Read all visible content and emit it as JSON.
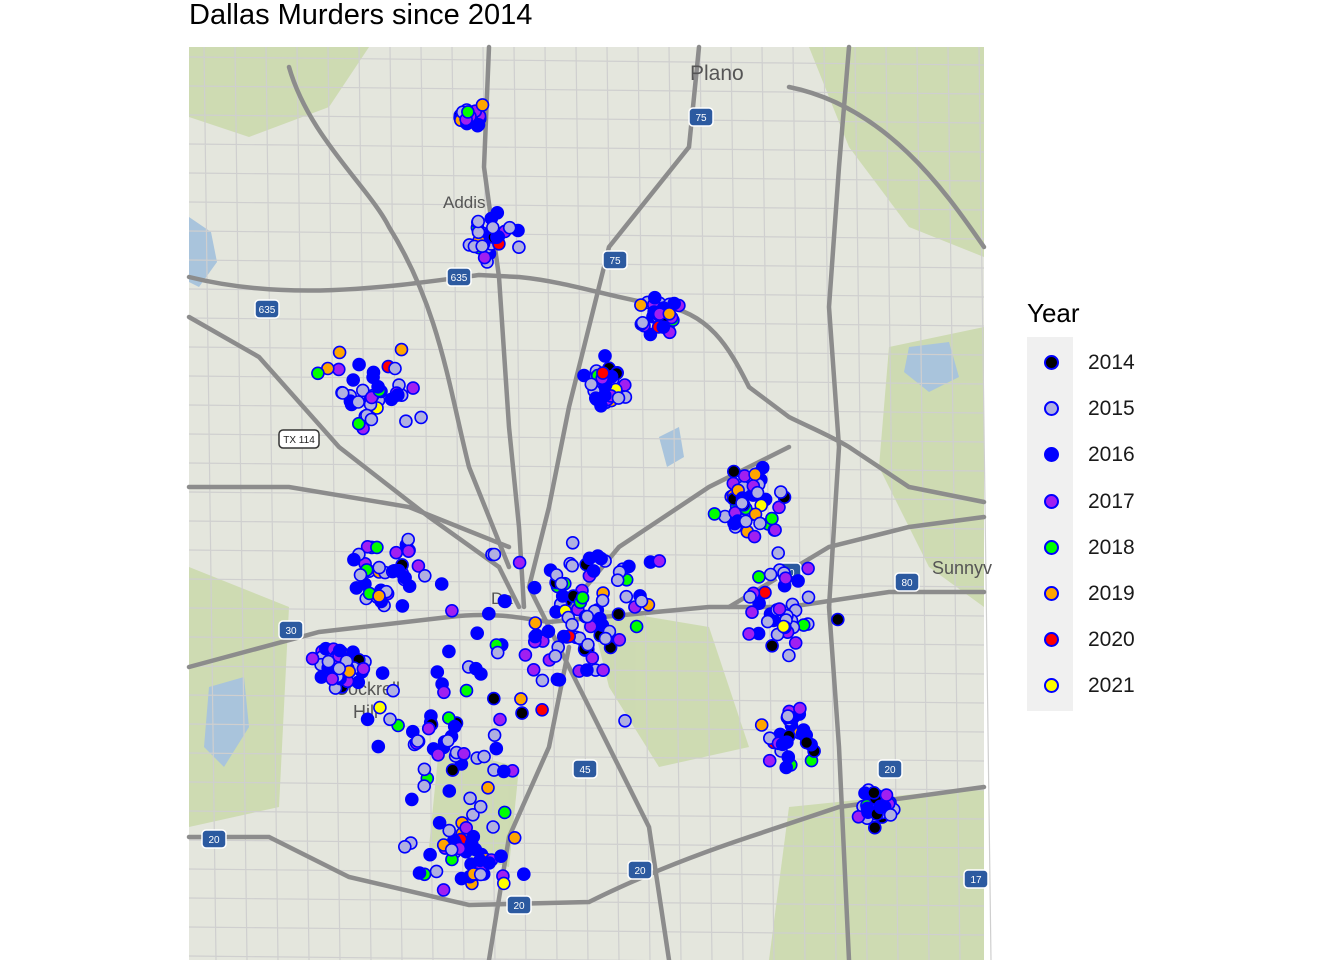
{
  "title": "Dallas Murders since 2014",
  "legend": {
    "title": "Year",
    "items": [
      {
        "label": "2014",
        "color": "#000000"
      },
      {
        "label": "2015",
        "color": "#b0b0e0"
      },
      {
        "label": "2016",
        "color": "#0000ff"
      },
      {
        "label": "2017",
        "color": "#a020f0"
      },
      {
        "label": "2018",
        "color": "#00ff00"
      },
      {
        "label": "2019",
        "color": "#ffa500"
      },
      {
        "label": "2020",
        "color": "#ff0000"
      },
      {
        "label": "2021",
        "color": "#ffff00"
      }
    ],
    "marker_outline": "#0000ff"
  },
  "basemap": {
    "places": [
      "Plano",
      "Addis",
      "Da",
      "Cockrell",
      "Hill",
      "Sunnyv"
    ],
    "shields": [
      "635",
      "635",
      "75",
      "75",
      "TX 114",
      "80",
      "80",
      "30",
      "20",
      "20",
      "20",
      "20",
      "45",
      "17"
    ]
  }
}
